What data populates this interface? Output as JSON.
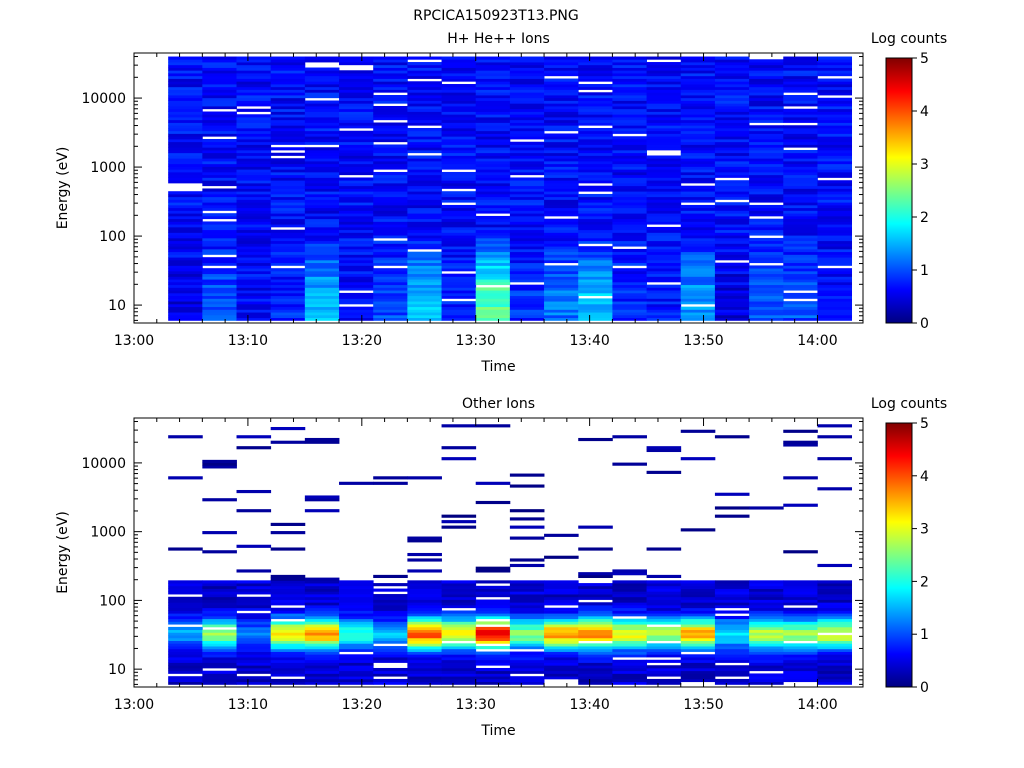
{
  "figure": {
    "title": "RPCICA150923T13.PNG"
  },
  "chart_data": [
    {
      "type": "heatmap",
      "title": "H+ He++ Ions",
      "xlabel": "Time",
      "ylabel": "Energy (eV)",
      "x_ticks": [
        "13:00",
        "13:10",
        "13:20",
        "13:30",
        "13:40",
        "13:50",
        "14:00"
      ],
      "x_range": [
        "13:00",
        "14:04"
      ],
      "y_scale": "log",
      "y_ticks": [
        "10",
        "100",
        "1000",
        "10000"
      ],
      "y_range": [
        5.5,
        45000
      ],
      "data_y_range": [
        6,
        40000
      ],
      "time_bins": [
        "13:03",
        "13:06",
        "13:09",
        "13:12",
        "13:15",
        "13:18",
        "13:21",
        "13:24",
        "13:27",
        "13:30",
        "13:33",
        "13:36",
        "13:39",
        "13:42",
        "13:45",
        "13:48",
        "13:51",
        "13:54",
        "13:57",
        "14:00"
      ],
      "energy_bins": 96,
      "colorbar": {
        "label": "Log counts",
        "range": [
          0,
          5
        ],
        "ticks": [
          "0",
          "1",
          "2",
          "3",
          "4",
          "5"
        ],
        "colormap": "jet"
      },
      "profile": {
        "low_energy_log_counts": [
          0.5,
          1.0,
          0.6,
          0.8,
          1.5,
          0.6,
          1.0,
          1.6,
          0.8,
          2.3,
          0.8,
          1.2,
          1.6,
          0.8,
          0.7,
          1.4,
          0.5,
          1.1,
          1.0,
          0.6
        ],
        "high_energy_log_counts": 0.65,
        "empty_bins": 0.05
      }
    },
    {
      "type": "heatmap",
      "title": "Other Ions",
      "xlabel": "Time",
      "ylabel": "Energy (eV)",
      "x_ticks": [
        "13:00",
        "13:10",
        "13:20",
        "13:30",
        "13:40",
        "13:50",
        "14:00"
      ],
      "x_range": [
        "13:00",
        "14:04"
      ],
      "y_scale": "log",
      "y_ticks": [
        "10",
        "100",
        "1000",
        "10000"
      ],
      "y_range": [
        5.5,
        45000
      ],
      "data_y_range": [
        6,
        40000
      ],
      "time_bins": [
        "13:03",
        "13:06",
        "13:09",
        "13:12",
        "13:15",
        "13:18",
        "13:21",
        "13:24",
        "13:27",
        "13:30",
        "13:33",
        "13:36",
        "13:39",
        "13:42",
        "13:45",
        "13:48",
        "13:51",
        "13:54",
        "13:57",
        "14:00"
      ],
      "energy_bins": 96,
      "colorbar": {
        "label": "Log counts",
        "range": [
          0,
          5
        ],
        "ticks": [
          "0",
          "1",
          "2",
          "3",
          "4",
          "5"
        ],
        "colormap": "jet"
      },
      "profile": {
        "peak_energy_eV": 33,
        "peak_log_counts": [
          1.5,
          2.7,
          1.2,
          3.2,
          3.7,
          2.0,
          1.5,
          4.0,
          3.2,
          4.5,
          2.5,
          3.6,
          3.8,
          3.1,
          2.7,
          3.5,
          1.8,
          2.8,
          2.6,
          3.0
        ],
        "dense_up_to_eV": 200,
        "sparse_high_energy_log_counts": 0.3,
        "sparse_fill_fraction": 0.07
      }
    }
  ]
}
